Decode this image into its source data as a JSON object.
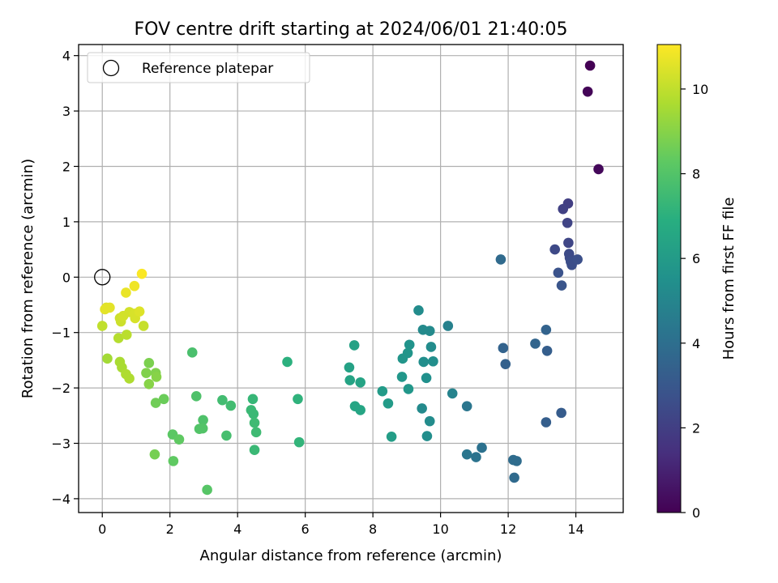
{
  "chart_data": {
    "type": "scatter",
    "title": "FOV centre drift starting at 2024/06/01 21:40:05",
    "xlabel": "Angular distance from reference (arcmin)",
    "ylabel": "Rotation from reference (arcmin)",
    "xlim": [
      -0.7,
      15.4
    ],
    "ylim": [
      -4.25,
      4.2
    ],
    "xticks": [
      0,
      2,
      4,
      6,
      8,
      10,
      12,
      14
    ],
    "yticks": [
      -4,
      -3,
      -2,
      -1,
      0,
      1,
      2,
      3,
      4
    ],
    "grid": true,
    "legend": {
      "position": "upper-left",
      "entries": [
        "Reference platepar"
      ]
    },
    "reference": {
      "x": 0,
      "y": 0
    },
    "colorbar": {
      "label": "Hours from first FF file",
      "colormap": "viridis",
      "range": [
        0,
        11.05
      ],
      "ticks": [
        0,
        2,
        4,
        6,
        8,
        10
      ]
    },
    "points": [
      {
        "x": 14.42,
        "y": 3.82,
        "c": 0.0
      },
      {
        "x": 14.35,
        "y": 3.35,
        "c": 0.1
      },
      {
        "x": 14.67,
        "y": 1.95,
        "c": 0.2
      },
      {
        "x": 13.77,
        "y": 1.33,
        "c": 2.0
      },
      {
        "x": 13.62,
        "y": 1.23,
        "c": 2.1
      },
      {
        "x": 13.75,
        "y": 0.98,
        "c": 2.2
      },
      {
        "x": 13.78,
        "y": 0.62,
        "c": 2.3
      },
      {
        "x": 13.38,
        "y": 0.5,
        "c": 2.4
      },
      {
        "x": 13.8,
        "y": 0.42,
        "c": 2.5
      },
      {
        "x": 13.82,
        "y": 0.35,
        "c": 2.5
      },
      {
        "x": 13.85,
        "y": 0.28,
        "c": 2.6
      },
      {
        "x": 13.88,
        "y": 0.22,
        "c": 2.6
      },
      {
        "x": 14.05,
        "y": 0.32,
        "c": 2.7
      },
      {
        "x": 13.48,
        "y": 0.08,
        "c": 2.8
      },
      {
        "x": 13.58,
        "y": -0.15,
        "c": 2.9
      },
      {
        "x": 11.78,
        "y": 0.32,
        "c": 3.8
      },
      {
        "x": 13.12,
        "y": -0.95,
        "c": 3.5
      },
      {
        "x": 12.8,
        "y": -1.2,
        "c": 3.6
      },
      {
        "x": 13.15,
        "y": -1.33,
        "c": 3.3
      },
      {
        "x": 11.85,
        "y": -1.28,
        "c": 3.5
      },
      {
        "x": 11.92,
        "y": -1.57,
        "c": 3.4
      },
      {
        "x": 13.12,
        "y": -2.62,
        "c": 3.3
      },
      {
        "x": 13.57,
        "y": -2.45,
        "c": 3.2
      },
      {
        "x": 10.78,
        "y": -2.33,
        "c": 4.3
      },
      {
        "x": 11.22,
        "y": -3.08,
        "c": 4.1
      },
      {
        "x": 10.78,
        "y": -3.2,
        "c": 4.3
      },
      {
        "x": 11.05,
        "y": -3.25,
        "c": 4.2
      },
      {
        "x": 12.15,
        "y": -3.3,
        "c": 3.9
      },
      {
        "x": 12.25,
        "y": -3.32,
        "c": 3.9
      },
      {
        "x": 12.18,
        "y": -3.62,
        "c": 3.8
      },
      {
        "x": 10.35,
        "y": -2.1,
        "c": 4.9
      },
      {
        "x": 10.22,
        "y": -0.88,
        "c": 4.8
      },
      {
        "x": 9.35,
        "y": -0.6,
        "c": 5.3
      },
      {
        "x": 9.48,
        "y": -0.95,
        "c": 5.2
      },
      {
        "x": 9.68,
        "y": -0.97,
        "c": 5.2
      },
      {
        "x": 9.72,
        "y": -1.26,
        "c": 5.3
      },
      {
        "x": 9.78,
        "y": -1.52,
        "c": 5.4
      },
      {
        "x": 9.5,
        "y": -1.53,
        "c": 5.4
      },
      {
        "x": 9.58,
        "y": -1.82,
        "c": 5.5
      },
      {
        "x": 9.45,
        "y": -2.37,
        "c": 5.2
      },
      {
        "x": 9.68,
        "y": -2.6,
        "c": 5.3
      },
      {
        "x": 9.6,
        "y": -2.87,
        "c": 5.4
      },
      {
        "x": 9.08,
        "y": -1.22,
        "c": 5.6
      },
      {
        "x": 9.03,
        "y": -1.37,
        "c": 5.7
      },
      {
        "x": 8.88,
        "y": -1.47,
        "c": 5.7
      },
      {
        "x": 8.86,
        "y": -1.8,
        "c": 5.8
      },
      {
        "x": 9.05,
        "y": -2.02,
        "c": 5.8
      },
      {
        "x": 8.28,
        "y": -2.06,
        "c": 6.0
      },
      {
        "x": 8.45,
        "y": -2.28,
        "c": 6.0
      },
      {
        "x": 8.55,
        "y": -2.88,
        "c": 6.1
      },
      {
        "x": 7.45,
        "y": -1.23,
        "c": 6.3
      },
      {
        "x": 7.3,
        "y": -1.63,
        "c": 6.3
      },
      {
        "x": 7.32,
        "y": -1.86,
        "c": 6.4
      },
      {
        "x": 7.63,
        "y": -1.9,
        "c": 6.4
      },
      {
        "x": 7.47,
        "y": -2.33,
        "c": 6.5
      },
      {
        "x": 7.63,
        "y": -2.4,
        "c": 6.5
      },
      {
        "x": 5.47,
        "y": -1.53,
        "c": 7.0
      },
      {
        "x": 5.78,
        "y": -2.2,
        "c": 7.1
      },
      {
        "x": 5.82,
        "y": -2.98,
        "c": 7.2
      },
      {
        "x": 4.45,
        "y": -2.2,
        "c": 7.3
      },
      {
        "x": 4.4,
        "y": -2.4,
        "c": 7.4
      },
      {
        "x": 4.47,
        "y": -2.47,
        "c": 7.4
      },
      {
        "x": 4.5,
        "y": -2.63,
        "c": 7.5
      },
      {
        "x": 4.55,
        "y": -2.8,
        "c": 7.5
      },
      {
        "x": 4.5,
        "y": -3.12,
        "c": 7.4
      },
      {
        "x": 3.55,
        "y": -2.22,
        "c": 7.6
      },
      {
        "x": 3.8,
        "y": -2.32,
        "c": 7.6
      },
      {
        "x": 3.67,
        "y": -2.86,
        "c": 7.7
      },
      {
        "x": 2.66,
        "y": -1.36,
        "c": 7.8
      },
      {
        "x": 2.78,
        "y": -2.15,
        "c": 7.9
      },
      {
        "x": 2.98,
        "y": -2.58,
        "c": 7.9
      },
      {
        "x": 2.97,
        "y": -2.73,
        "c": 8.0
      },
      {
        "x": 2.87,
        "y": -2.74,
        "c": 8.0
      },
      {
        "x": 3.1,
        "y": -3.84,
        "c": 8.1
      },
      {
        "x": 2.08,
        "y": -2.84,
        "c": 8.2
      },
      {
        "x": 2.27,
        "y": -2.93,
        "c": 8.3
      },
      {
        "x": 2.1,
        "y": -3.32,
        "c": 8.3
      },
      {
        "x": 1.82,
        "y": -2.2,
        "c": 8.5
      },
      {
        "x": 1.58,
        "y": -2.27,
        "c": 8.6
      },
      {
        "x": 1.55,
        "y": -3.2,
        "c": 8.7
      },
      {
        "x": 1.38,
        "y": -1.55,
        "c": 8.8
      },
      {
        "x": 1.3,
        "y": -1.73,
        "c": 8.9
      },
      {
        "x": 1.58,
        "y": -1.73,
        "c": 8.9
      },
      {
        "x": 1.6,
        "y": -1.8,
        "c": 9.0
      },
      {
        "x": 1.38,
        "y": -1.93,
        "c": 9.0
      },
      {
        "x": 0.15,
        "y": -1.47,
        "c": 9.5
      },
      {
        "x": 0.52,
        "y": -1.53,
        "c": 9.6
      },
      {
        "x": 0.58,
        "y": -1.63,
        "c": 9.6
      },
      {
        "x": 0.7,
        "y": -1.75,
        "c": 9.7
      },
      {
        "x": 0.8,
        "y": -1.83,
        "c": 9.7
      },
      {
        "x": 0.48,
        "y": -1.1,
        "c": 9.8
      },
      {
        "x": 0.72,
        "y": -1.04,
        "c": 9.9
      },
      {
        "x": 0.0,
        "y": -0.88,
        "c": 10.0
      },
      {
        "x": 1.22,
        "y": -0.88,
        "c": 10.1
      },
      {
        "x": 0.52,
        "y": -0.74,
        "c": 10.2
      },
      {
        "x": 0.55,
        "y": -0.8,
        "c": 10.2
      },
      {
        "x": 0.62,
        "y": -0.7,
        "c": 10.3
      },
      {
        "x": 0.8,
        "y": -0.63,
        "c": 10.3
      },
      {
        "x": 0.95,
        "y": -0.66,
        "c": 10.4
      },
      {
        "x": 0.97,
        "y": -0.74,
        "c": 10.4
      },
      {
        "x": 1.1,
        "y": -0.62,
        "c": 10.5
      },
      {
        "x": 0.12,
        "y": -0.55,
        "c": 10.5
      },
      {
        "x": 0.22,
        "y": -0.55,
        "c": 10.6
      },
      {
        "x": 0.08,
        "y": -0.58,
        "c": 10.6
      },
      {
        "x": 0.7,
        "y": -0.28,
        "c": 10.7
      },
      {
        "x": 0.95,
        "y": -0.16,
        "c": 10.8
      },
      {
        "x": 1.17,
        "y": 0.06,
        "c": 11.0
      }
    ]
  }
}
